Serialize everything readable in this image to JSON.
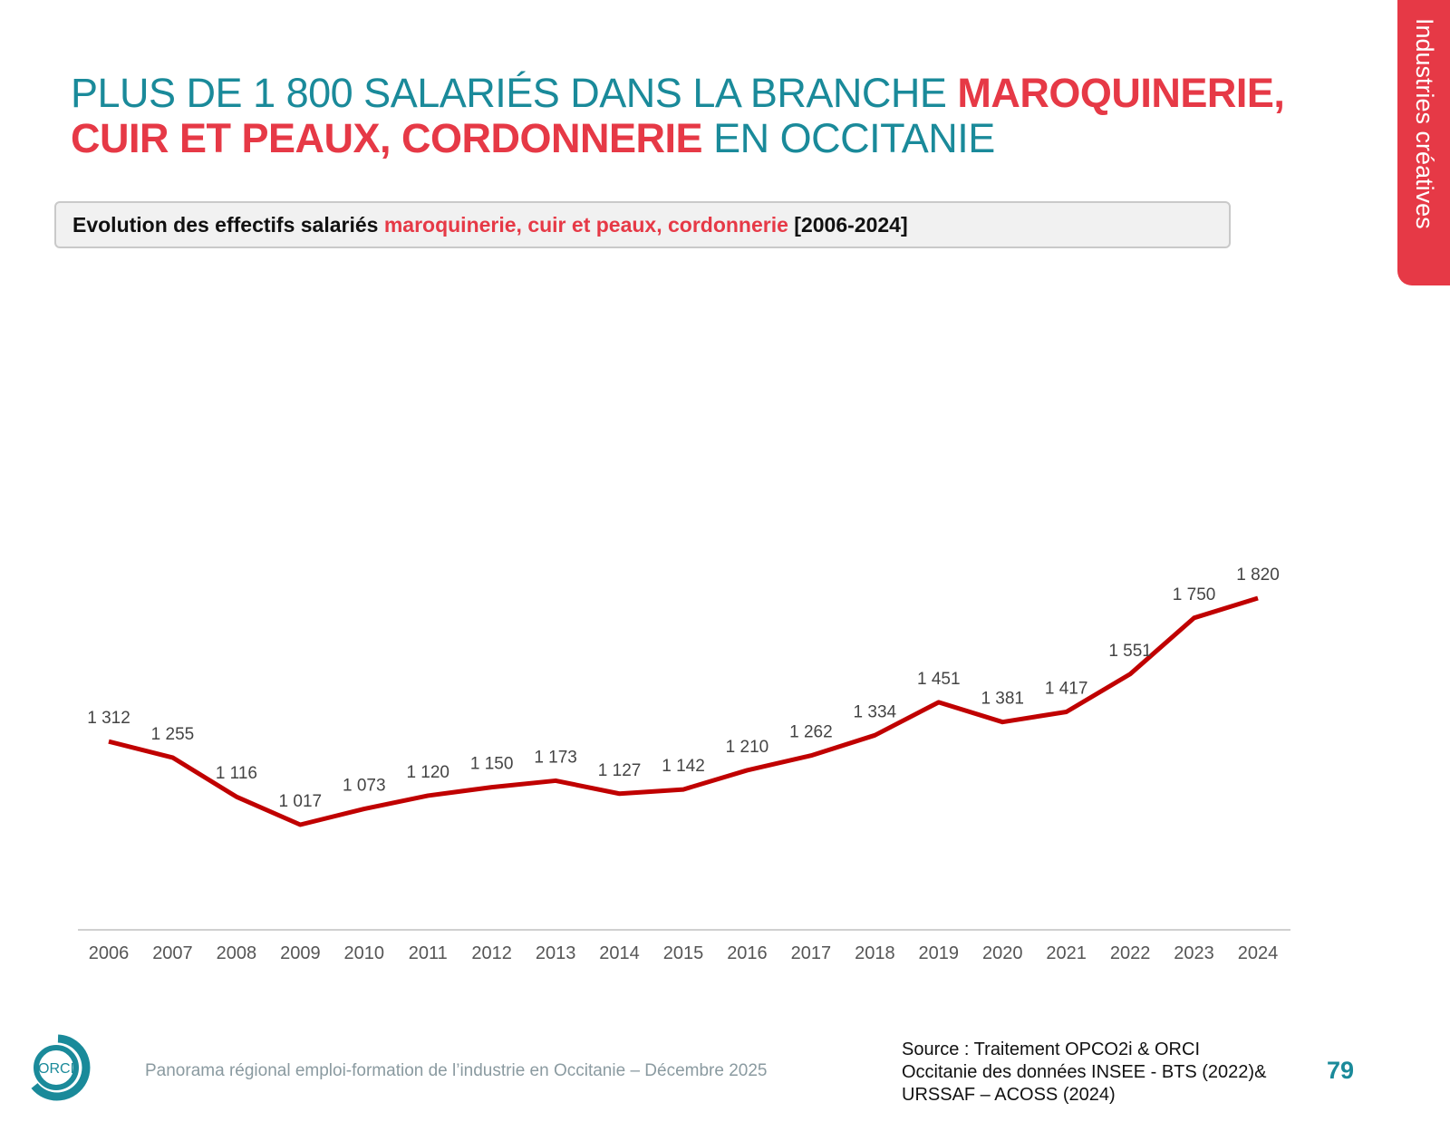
{
  "title": {
    "part1": "PLUS DE 1 800 SALARIÉS DANS LA BRANCHE ",
    "part2": "MAROQUINERIE, CUIR ET PEAUX, CORDONNERIE",
    "part3": " EN OCCITANIE"
  },
  "subtitle": {
    "part1": "Evolution des effectifs salariés ",
    "part2": "maroquinerie, cuir et peaux, cordonnerie",
    "part3": " [2006-2024]"
  },
  "side_tab": "Industries créatives",
  "footer": "Panorama régional emploi-formation de l’industrie en Occitanie – Décembre 2025",
  "source": {
    "line1": "Source : Traitement OPCO2i & ORCI",
    "line2": "Occitanie des données  INSEE - BTS (2022)&",
    "line3": "URSSAF – ACOSS (2024)"
  },
  "page_number": "79",
  "logo_text": "ORCI",
  "colors": {
    "teal": "#1a8a9a",
    "red": "#e63946",
    "line": "#c00000"
  },
  "chart_data": {
    "type": "line",
    "categories": [
      "2006",
      "2007",
      "2008",
      "2009",
      "2010",
      "2011",
      "2012",
      "2013",
      "2014",
      "2015",
      "2016",
      "2017",
      "2018",
      "2019",
      "2020",
      "2021",
      "2022",
      "2023",
      "2024"
    ],
    "values": [
      1312,
      1255,
      1116,
      1017,
      1073,
      1120,
      1150,
      1173,
      1127,
      1142,
      1210,
      1262,
      1334,
      1451,
      1381,
      1417,
      1551,
      1750,
      1820
    ],
    "data_labels": [
      "1 312",
      "1 255",
      "1 116",
      "1 017",
      "1 073",
      "1 120",
      "1 150",
      "1 173",
      "1 127",
      "1 142",
      "1 210",
      "1 262",
      "1 334",
      "1 451",
      "1 381",
      "1 417",
      "1 551",
      "1 750",
      "1 820"
    ],
    "grid": false,
    "legend": "none"
  }
}
